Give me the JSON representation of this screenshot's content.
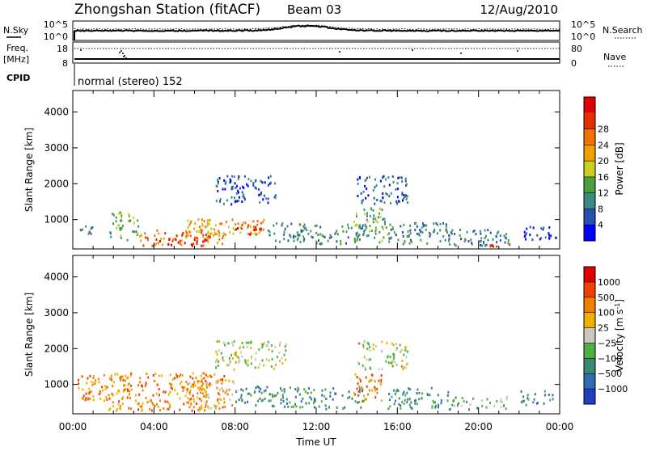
{
  "header": {
    "station": "Zhongshan Station (fitACF)",
    "beam": "Beam 03",
    "date": "12/Aug/2010"
  },
  "noise_panel": {
    "left_label": "N.Sky",
    "right_label": "N.Search",
    "left_ticks": [
      "10^5",
      "10^0"
    ],
    "right_ticks": [
      "10^5",
      "10^0"
    ]
  },
  "freq_panel": {
    "left_label_1": "Freq.",
    "left_label_2": "[MHz]",
    "right_label": "Nave",
    "left_ticks": [
      "18",
      "8"
    ],
    "right_ticks": [
      "80",
      "0"
    ]
  },
  "cpid": {
    "label": "CPID",
    "value": "normal (stereo) 152"
  },
  "chart_data": [
    {
      "type": "heatmap",
      "name": "power",
      "ylabel": "Slant Range [km]",
      "ylim": [
        180,
        4600
      ],
      "yticks": [
        "1000",
        "2000",
        "3000",
        "4000"
      ],
      "ytick_values": [
        1000,
        2000,
        3000,
        4000
      ],
      "xlim": [
        0,
        24
      ],
      "colorbar_label": "Power [dB]",
      "colorbar_ticks": [
        "4",
        "8",
        "12",
        "16",
        "20",
        "24",
        "28"
      ],
      "colors": [
        "#0000ff",
        "#2a4fb0",
        "#3a8a80",
        "#4aa040",
        "#c8d020",
        "#f0a000",
        "#f07000",
        "#e03000",
        "#e00000"
      ],
      "regions": [
        {
          "x0": 0.2,
          "x1": 1.0,
          "y0": 550,
          "y1": 800,
          "level": 2
        },
        {
          "x0": 1.8,
          "x1": 3.2,
          "y0": 400,
          "y1": 1200,
          "level": 3
        },
        {
          "x0": 3.2,
          "x1": 7.5,
          "y0": 250,
          "y1": 700,
          "level": 6
        },
        {
          "x0": 4.0,
          "x1": 6.5,
          "y0": 250,
          "y1": 450,
          "level": 8
        },
        {
          "x0": 5.5,
          "x1": 9.5,
          "y0": 500,
          "y1": 1000,
          "level": 5
        },
        {
          "x0": 8.0,
          "x1": 9.5,
          "y0": 550,
          "y1": 850,
          "level": 7
        },
        {
          "x0": 9.5,
          "x1": 11.5,
          "y0": 350,
          "y1": 900,
          "level": 2
        },
        {
          "x0": 7.0,
          "x1": 10.0,
          "y0": 1400,
          "y1": 2200,
          "level": 1
        },
        {
          "x0": 11.0,
          "x1": 14.5,
          "y0": 300,
          "y1": 850,
          "level": 2
        },
        {
          "x0": 13.8,
          "x1": 15.5,
          "y0": 300,
          "y1": 1300,
          "level": 3
        },
        {
          "x0": 14.0,
          "x1": 16.5,
          "y0": 1400,
          "y1": 2200,
          "level": 1
        },
        {
          "x0": 15.5,
          "x1": 18.5,
          "y0": 300,
          "y1": 900,
          "level": 2
        },
        {
          "x0": 18.5,
          "x1": 21.5,
          "y0": 250,
          "y1": 700,
          "level": 2
        },
        {
          "x0": 20.5,
          "x1": 21.6,
          "y0": 230,
          "y1": 350,
          "level": 8
        },
        {
          "x0": 22.0,
          "x1": 23.8,
          "y0": 400,
          "y1": 800,
          "level": 1
        }
      ]
    },
    {
      "type": "heatmap",
      "name": "velocity",
      "ylabel": "Slant Range [km]",
      "ylim": [
        180,
        4600
      ],
      "yticks": [
        "1000",
        "2000",
        "3000",
        "4000"
      ],
      "ytick_values": [
        1000,
        2000,
        3000,
        4000
      ],
      "xlim": [
        0,
        24
      ],
      "xticks": [
        "00:00",
        "04:00",
        "08:00",
        "12:00",
        "16:00",
        "20:00",
        "00:00"
      ],
      "xtick_values": [
        0,
        4,
        8,
        12,
        16,
        20,
        24
      ],
      "xlabel": "Time UT",
      "colorbar_label": "Velocity [m s^-1]",
      "colorbar_ticks": [
        "1000",
        "500",
        "100",
        "25",
        "−25",
        "−100",
        "−500",
        "−1000"
      ],
      "colors": [
        "#2040c0",
        "#306ab0",
        "#3a8a70",
        "#50b040",
        "#c8c8c0",
        "#f0b000",
        "#f08000",
        "#f04000",
        "#e00000"
      ],
      "regions": [
        {
          "x0": 0.2,
          "x1": 1.5,
          "y0": 550,
          "y1": 1250,
          "level": 6
        },
        {
          "x0": 1.5,
          "x1": 7.5,
          "y0": 250,
          "y1": 1300,
          "level": 6
        },
        {
          "x0": 5.5,
          "x1": 8.0,
          "y0": 300,
          "y1": 1100,
          "level": 5
        },
        {
          "x0": 8.0,
          "x1": 10.5,
          "y0": 350,
          "y1": 950,
          "level": 2
        },
        {
          "x0": 7.0,
          "x1": 10.5,
          "y0": 1400,
          "y1": 2200,
          "level": 4
        },
        {
          "x0": 10.5,
          "x1": 14.5,
          "y0": 300,
          "y1": 900,
          "level": 2
        },
        {
          "x0": 13.8,
          "x1": 15.2,
          "y0": 500,
          "y1": 1300,
          "level": 6
        },
        {
          "x0": 14.0,
          "x1": 16.5,
          "y0": 1400,
          "y1": 2200,
          "level": 4
        },
        {
          "x0": 15.5,
          "x1": 18.5,
          "y0": 300,
          "y1": 900,
          "level": 2
        },
        {
          "x0": 18.5,
          "x1": 21.5,
          "y0": 250,
          "y1": 650,
          "level": 3
        },
        {
          "x0": 22.0,
          "x1": 23.8,
          "y0": 400,
          "y1": 800,
          "level": 2
        }
      ]
    }
  ]
}
